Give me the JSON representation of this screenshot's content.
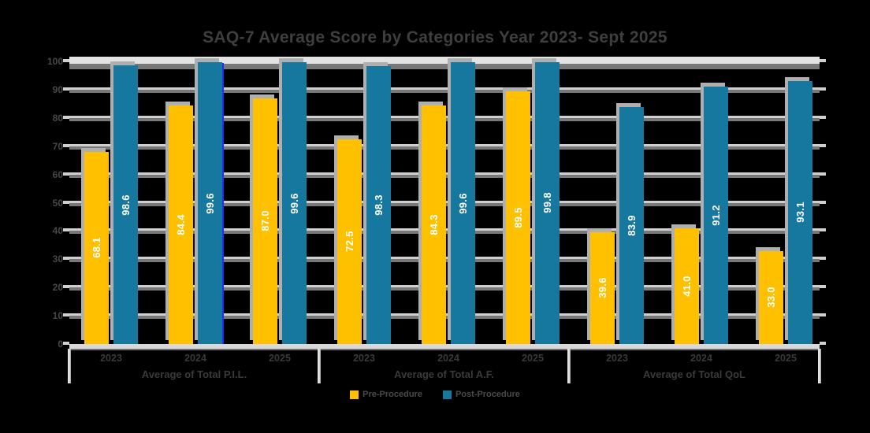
{
  "colors": {
    "background": "#000000",
    "pre_procedure": "#FFC000",
    "post_procedure": "#16789E",
    "gridline_light": "#CFCFCF",
    "gridline_shadow": "#787878",
    "axis_text": "#3A3A3A",
    "bar_value_text": "#FFFFFF",
    "selection_highlight": "#2828FF"
  },
  "chart_data": {
    "type": "bar",
    "title": "SAQ-7 Average Score by Categories Year 2023- Sept 2025",
    "xlabel": "",
    "ylabel": "",
    "ylim": [
      0,
      100
    ],
    "y_ticks": [
      0,
      10,
      20,
      30,
      40,
      50,
      60,
      70,
      80,
      90,
      100
    ],
    "grid": true,
    "legend_position": "bottom",
    "series": [
      {
        "name": "Pre-Procedure",
        "color": "#FFC000"
      },
      {
        "name": "Post-Procedure",
        "color": "#16789E"
      }
    ],
    "groups": [
      {
        "label": "Average of Total P.I.L.",
        "clusters": [
          {
            "year": "2023",
            "pre": 68.1,
            "post": 98.6,
            "pre_label": "68.1",
            "post_label": "98.6"
          },
          {
            "year": "2024",
            "pre": 84.4,
            "post": 99.6,
            "pre_label": "84.4",
            "post_label": "99.6"
          },
          {
            "year": "2025",
            "pre": 87.0,
            "post": 99.6,
            "pre_label": "87.0",
            "post_label": "99.6"
          }
        ]
      },
      {
        "label": "Average of Total A.F.",
        "clusters": [
          {
            "year": "2023",
            "pre": 72.5,
            "post": 98.3,
            "pre_label": "72.5",
            "post_label": "98.3"
          },
          {
            "year": "2024",
            "pre": 84.3,
            "post": 99.6,
            "pre_label": "84.3",
            "post_label": "99.6"
          },
          {
            "year": "2025",
            "pre": 89.5,
            "post": 99.8,
            "pre_label": "89.5",
            "post_label": "99.8"
          }
        ]
      },
      {
        "label": "Average of Total QoL",
        "clusters": [
          {
            "year": "2023",
            "pre": 39.6,
            "post": 83.9,
            "pre_label": "39.6",
            "post_label": "83.9"
          },
          {
            "year": "2024",
            "pre": 41.0,
            "post": 91.2,
            "pre_label": "41.0",
            "post_label": "91.2"
          },
          {
            "year": "2025",
            "pre": 33.0,
            "post": 93.1,
            "pre_label": "33.0",
            "post_label": "93.1"
          }
        ]
      }
    ]
  }
}
